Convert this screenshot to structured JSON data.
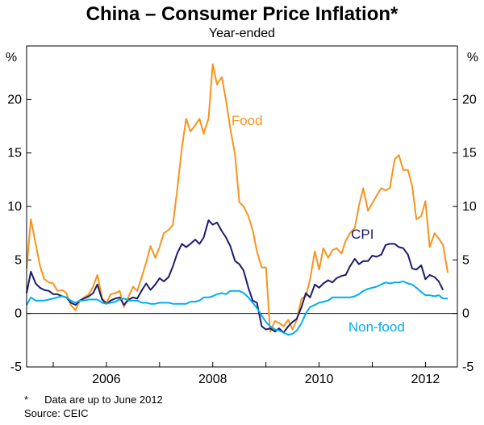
{
  "chart_data": {
    "type": "line",
    "title": "China – Consumer Price Inflation*",
    "subtitle": "Year-ended",
    "ylabel_left": "%",
    "ylabel_right": "%",
    "ylim": [
      -5,
      25
    ],
    "yticks": [
      -5,
      0,
      5,
      10,
      15,
      20
    ],
    "xlim": [
      2004.5,
      2012.6
    ],
    "xticks": [
      2005,
      2006,
      2007,
      2008,
      2009,
      2010,
      2011,
      2012
    ],
    "xtick_labels": [
      "2006",
      "2008",
      "2010",
      "2012"
    ],
    "xtick_label_values": [
      2006,
      2008,
      2010,
      2012
    ],
    "series": [
      {
        "name": "Food",
        "color": "#f7941d",
        "points": [
          [
            2004.5,
            4.2
          ],
          [
            2004.58,
            8.8
          ],
          [
            2004.67,
            6.5
          ],
          [
            2004.75,
            4.5
          ],
          [
            2004.83,
            3.2
          ],
          [
            2004.92,
            2.9
          ],
          [
            2005.0,
            2.8
          ],
          [
            2005.08,
            2.1
          ],
          [
            2005.17,
            2.2
          ],
          [
            2005.25,
            1.9
          ],
          [
            2005.33,
            0.8
          ],
          [
            2005.42,
            0.3
          ],
          [
            2005.5,
            1.2
          ],
          [
            2005.58,
            1.5
          ],
          [
            2005.67,
            1.8
          ],
          [
            2005.75,
            2.5
          ],
          [
            2005.83,
            3.6
          ],
          [
            2005.92,
            1.4
          ],
          [
            2006.0,
            1.0
          ],
          [
            2006.08,
            1.8
          ],
          [
            2006.17,
            1.9
          ],
          [
            2006.25,
            2.1
          ],
          [
            2006.33,
            0.6
          ],
          [
            2006.42,
            1.6
          ],
          [
            2006.5,
            2.5
          ],
          [
            2006.58,
            2.1
          ],
          [
            2006.67,
            3.5
          ],
          [
            2006.75,
            4.8
          ],
          [
            2006.83,
            6.3
          ],
          [
            2006.92,
            5.2
          ],
          [
            2007.0,
            6.2
          ],
          [
            2007.08,
            7.5
          ],
          [
            2007.17,
            7.8
          ],
          [
            2007.25,
            8.3
          ],
          [
            2007.33,
            11.5
          ],
          [
            2007.42,
            15.5
          ],
          [
            2007.5,
            18.2
          ],
          [
            2007.58,
            17.0
          ],
          [
            2007.67,
            17.6
          ],
          [
            2007.75,
            18.2
          ],
          [
            2007.83,
            16.8
          ],
          [
            2007.92,
            18.2
          ],
          [
            2008.0,
            23.3
          ],
          [
            2008.08,
            21.4
          ],
          [
            2008.17,
            22.1
          ],
          [
            2008.25,
            19.9
          ],
          [
            2008.33,
            17.3
          ],
          [
            2008.42,
            14.8
          ],
          [
            2008.5,
            10.4
          ],
          [
            2008.58,
            10.0
          ],
          [
            2008.67,
            9.1
          ],
          [
            2008.75,
            7.8
          ],
          [
            2008.83,
            5.8
          ],
          [
            2008.92,
            4.3
          ],
          [
            2009.0,
            4.3
          ],
          [
            2009.08,
            -1.7
          ],
          [
            2009.17,
            -0.7
          ],
          [
            2009.25,
            -0.9
          ],
          [
            2009.33,
            -1.2
          ],
          [
            2009.42,
            -0.6
          ],
          [
            2009.5,
            -1.5
          ],
          [
            2009.58,
            -0.6
          ],
          [
            2009.67,
            1.4
          ],
          [
            2009.75,
            1.6
          ],
          [
            2009.83,
            3.2
          ],
          [
            2009.92,
            5.8
          ],
          [
            2010.0,
            4.1
          ],
          [
            2010.08,
            6.1
          ],
          [
            2010.17,
            5.2
          ],
          [
            2010.25,
            5.9
          ],
          [
            2010.33,
            6.1
          ],
          [
            2010.42,
            5.6
          ],
          [
            2010.5,
            6.8
          ],
          [
            2010.58,
            7.5
          ],
          [
            2010.67,
            8.0
          ],
          [
            2010.75,
            10.1
          ],
          [
            2010.83,
            11.7
          ],
          [
            2010.92,
            9.6
          ],
          [
            2011.0,
            10.3
          ],
          [
            2011.08,
            11.0
          ],
          [
            2011.17,
            11.7
          ],
          [
            2011.25,
            11.5
          ],
          [
            2011.33,
            11.7
          ],
          [
            2011.42,
            14.4
          ],
          [
            2011.5,
            14.8
          ],
          [
            2011.58,
            13.4
          ],
          [
            2011.67,
            13.4
          ],
          [
            2011.75,
            11.9
          ],
          [
            2011.83,
            8.8
          ],
          [
            2011.92,
            9.1
          ],
          [
            2012.0,
            10.5
          ],
          [
            2012.08,
            6.2
          ],
          [
            2012.17,
            7.5
          ],
          [
            2012.25,
            7.0
          ],
          [
            2012.33,
            6.4
          ],
          [
            2012.42,
            3.8
          ]
        ]
      },
      {
        "name": "CPI",
        "color": "#1c1c6e",
        "points": [
          [
            2004.5,
            1.9
          ],
          [
            2004.58,
            3.9
          ],
          [
            2004.67,
            2.8
          ],
          [
            2004.75,
            2.4
          ],
          [
            2004.83,
            2.2
          ],
          [
            2004.92,
            2.1
          ],
          [
            2005.0,
            1.8
          ],
          [
            2005.08,
            1.8
          ],
          [
            2005.17,
            1.6
          ],
          [
            2005.25,
            1.5
          ],
          [
            2005.33,
            1.0
          ],
          [
            2005.42,
            0.8
          ],
          [
            2005.5,
            1.2
          ],
          [
            2005.58,
            1.4
          ],
          [
            2005.67,
            1.6
          ],
          [
            2005.75,
            1.9
          ],
          [
            2005.83,
            2.7
          ],
          [
            2005.92,
            1.3
          ],
          [
            2006.0,
            0.9
          ],
          [
            2006.08,
            1.2
          ],
          [
            2006.17,
            1.4
          ],
          [
            2006.25,
            1.5
          ],
          [
            2006.33,
            0.8
          ],
          [
            2006.42,
            1.3
          ],
          [
            2006.5,
            1.5
          ],
          [
            2006.58,
            1.4
          ],
          [
            2006.67,
            2.2
          ],
          [
            2006.75,
            2.8
          ],
          [
            2006.83,
            2.2
          ],
          [
            2006.92,
            2.7
          ],
          [
            2007.0,
            3.3
          ],
          [
            2007.08,
            3.0
          ],
          [
            2007.17,
            3.4
          ],
          [
            2007.25,
            4.4
          ],
          [
            2007.33,
            5.6
          ],
          [
            2007.42,
            6.5
          ],
          [
            2007.5,
            6.2
          ],
          [
            2007.58,
            6.5
          ],
          [
            2007.67,
            6.9
          ],
          [
            2007.75,
            6.5
          ],
          [
            2007.83,
            7.1
          ],
          [
            2007.92,
            8.7
          ],
          [
            2008.0,
            8.3
          ],
          [
            2008.08,
            8.5
          ],
          [
            2008.17,
            7.7
          ],
          [
            2008.25,
            7.1
          ],
          [
            2008.33,
            6.3
          ],
          [
            2008.42,
            4.9
          ],
          [
            2008.5,
            4.6
          ],
          [
            2008.58,
            4.0
          ],
          [
            2008.67,
            2.4
          ],
          [
            2008.75,
            1.2
          ],
          [
            2008.83,
            1.0
          ],
          [
            2008.92,
            -1.2
          ],
          [
            2009.0,
            -1.5
          ],
          [
            2009.08,
            -1.4
          ],
          [
            2009.17,
            -1.7
          ],
          [
            2009.25,
            -1.4
          ],
          [
            2009.33,
            -1.8
          ],
          [
            2009.42,
            -1.2
          ],
          [
            2009.5,
            -0.8
          ],
          [
            2009.58,
            -0.5
          ],
          [
            2009.67,
            0.6
          ],
          [
            2009.75,
            1.9
          ],
          [
            2009.83,
            1.5
          ],
          [
            2009.92,
            2.7
          ],
          [
            2010.0,
            2.4
          ],
          [
            2010.08,
            2.8
          ],
          [
            2010.17,
            3.1
          ],
          [
            2010.25,
            2.9
          ],
          [
            2010.33,
            3.3
          ],
          [
            2010.42,
            3.5
          ],
          [
            2010.5,
            3.6
          ],
          [
            2010.58,
            4.4
          ],
          [
            2010.67,
            5.1
          ],
          [
            2010.75,
            4.6
          ],
          [
            2010.83,
            4.9
          ],
          [
            2010.92,
            4.9
          ],
          [
            2011.0,
            5.4
          ],
          [
            2011.08,
            5.3
          ],
          [
            2011.17,
            5.5
          ],
          [
            2011.25,
            6.4
          ],
          [
            2011.33,
            6.5
          ],
          [
            2011.42,
            6.5
          ],
          [
            2011.5,
            6.2
          ],
          [
            2011.58,
            6.1
          ],
          [
            2011.67,
            5.5
          ],
          [
            2011.75,
            4.2
          ],
          [
            2011.83,
            4.1
          ],
          [
            2011.92,
            4.5
          ],
          [
            2012.0,
            3.2
          ],
          [
            2012.08,
            3.6
          ],
          [
            2012.17,
            3.4
          ],
          [
            2012.25,
            3.0
          ],
          [
            2012.33,
            2.2
          ]
        ]
      },
      {
        "name": "Non-food",
        "color": "#00aeef",
        "points": [
          [
            2004.5,
            0.8
          ],
          [
            2004.58,
            1.5
          ],
          [
            2004.67,
            1.2
          ],
          [
            2004.75,
            1.2
          ],
          [
            2004.83,
            1.2
          ],
          [
            2004.92,
            1.3
          ],
          [
            2005.0,
            1.4
          ],
          [
            2005.08,
            1.5
          ],
          [
            2005.17,
            1.6
          ],
          [
            2005.25,
            1.5
          ],
          [
            2005.33,
            1.2
          ],
          [
            2005.42,
            1.0
          ],
          [
            2005.5,
            1.2
          ],
          [
            2005.58,
            1.2
          ],
          [
            2005.67,
            1.3
          ],
          [
            2005.75,
            1.3
          ],
          [
            2005.83,
            1.3
          ],
          [
            2005.92,
            1.0
          ],
          [
            2006.0,
            0.9
          ],
          [
            2006.08,
            1.0
          ],
          [
            2006.17,
            1.1
          ],
          [
            2006.25,
            1.3
          ],
          [
            2006.33,
            1.4
          ],
          [
            2006.42,
            1.2
          ],
          [
            2006.5,
            1.2
          ],
          [
            2006.58,
            1.2
          ],
          [
            2006.67,
            1.0
          ],
          [
            2006.75,
            1.0
          ],
          [
            2006.83,
            0.9
          ],
          [
            2006.92,
            0.9
          ],
          [
            2007.0,
            1.0
          ],
          [
            2007.08,
            1.0
          ],
          [
            2007.17,
            1.0
          ],
          [
            2007.25,
            0.9
          ],
          [
            2007.33,
            0.9
          ],
          [
            2007.42,
            0.9
          ],
          [
            2007.5,
            0.9
          ],
          [
            2007.58,
            1.1
          ],
          [
            2007.67,
            1.1
          ],
          [
            2007.75,
            1.2
          ],
          [
            2007.83,
            1.5
          ],
          [
            2007.92,
            1.5
          ],
          [
            2008.0,
            1.6
          ],
          [
            2008.08,
            1.8
          ],
          [
            2008.17,
            1.9
          ],
          [
            2008.25,
            1.8
          ],
          [
            2008.33,
            2.1
          ],
          [
            2008.42,
            2.1
          ],
          [
            2008.5,
            2.1
          ],
          [
            2008.58,
            1.9
          ],
          [
            2008.67,
            1.5
          ],
          [
            2008.75,
            1.0
          ],
          [
            2008.83,
            0.5
          ],
          [
            2008.92,
            -0.2
          ],
          [
            2009.0,
            -0.8
          ],
          [
            2009.08,
            -1.2
          ],
          [
            2009.17,
            -1.5
          ],
          [
            2009.25,
            -1.6
          ],
          [
            2009.33,
            -1.8
          ],
          [
            2009.42,
            -2.0
          ],
          [
            2009.5,
            -1.9
          ],
          [
            2009.58,
            -1.6
          ],
          [
            2009.67,
            -0.9
          ],
          [
            2009.75,
            0.0
          ],
          [
            2009.83,
            0.6
          ],
          [
            2009.92,
            0.8
          ],
          [
            2010.0,
            1.0
          ],
          [
            2010.08,
            1.1
          ],
          [
            2010.17,
            1.2
          ],
          [
            2010.25,
            1.5
          ],
          [
            2010.33,
            1.5
          ],
          [
            2010.42,
            1.5
          ],
          [
            2010.5,
            1.5
          ],
          [
            2010.58,
            1.5
          ],
          [
            2010.67,
            1.6
          ],
          [
            2010.75,
            1.8
          ],
          [
            2010.83,
            2.1
          ],
          [
            2010.92,
            2.3
          ],
          [
            2011.0,
            2.4
          ],
          [
            2011.08,
            2.5
          ],
          [
            2011.17,
            2.7
          ],
          [
            2011.25,
            2.9
          ],
          [
            2011.33,
            2.8
          ],
          [
            2011.42,
            2.9
          ],
          [
            2011.5,
            2.9
          ],
          [
            2011.58,
            3.0
          ],
          [
            2011.67,
            2.8
          ],
          [
            2011.75,
            2.7
          ],
          [
            2011.83,
            2.4
          ],
          [
            2011.92,
            2.0
          ],
          [
            2012.0,
            1.7
          ],
          [
            2012.08,
            1.7
          ],
          [
            2012.17,
            1.6
          ],
          [
            2012.25,
            1.7
          ],
          [
            2012.33,
            1.4
          ],
          [
            2012.42,
            1.4
          ]
        ]
      }
    ],
    "series_labels": [
      {
        "text": "Food",
        "x": 2008.35,
        "y": 17.6,
        "color": "#f7941d"
      },
      {
        "text": "CPI",
        "x": 2010.6,
        "y": 7.0,
        "color": "#1c1c6e"
      },
      {
        "text": "Non-food",
        "x": 2010.55,
        "y": -1.7,
        "color": "#00aeef"
      }
    ]
  },
  "footnotes": {
    "note_marker": "*",
    "note_text": "Data are up to June 2012",
    "source": "Source: CEIC"
  }
}
